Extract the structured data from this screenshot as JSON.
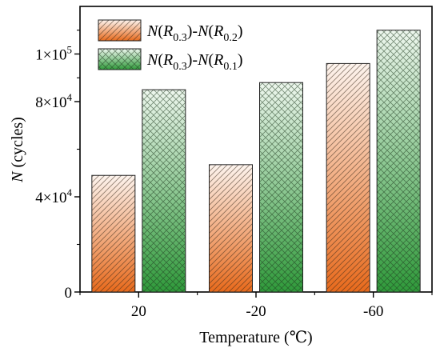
{
  "chart_data": {
    "type": "bar",
    "categories": [
      "20",
      "-20",
      "-60"
    ],
    "series": [
      {
        "name": "N(R0.3)-N(R0.2)",
        "values": [
          49000,
          53500,
          96000
        ],
        "pattern": "diagonal-hatch",
        "colors": {
          "top": "#fdf4ee",
          "bottom": "#e86a1c"
        }
      },
      {
        "name": "N(R0.3)-N(R0.1)",
        "values": [
          85000,
          88000,
          110000
        ],
        "pattern": "cross-hatch",
        "colors": {
          "top": "#eef7ee",
          "bottom": "#2f9a3a"
        }
      }
    ],
    "xlabel": "Temperature (℃)",
    "ylabel": "N (cycles)",
    "ylim": [
      0,
      120000
    ],
    "yticks": [
      {
        "value": 0,
        "mantissa": "0",
        "exp": ""
      },
      {
        "value": 40000,
        "mantissa": "4×10",
        "exp": "4"
      },
      {
        "value": 80000,
        "mantissa": "8×10",
        "exp": "4"
      },
      {
        "value": 100000,
        "mantissa": "1×10",
        "exp": "5"
      }
    ],
    "legend": {
      "position": "top-left",
      "entries": [
        {
          "N": "N",
          "R1": "R",
          "s1": "0.3",
          "N2": "N",
          "R2": "R",
          "s2": "0.2"
        },
        {
          "N": "N",
          "R1": "R",
          "s1": "0.3",
          "N2": "N",
          "R2": "R",
          "s2": "0.1"
        }
      ]
    },
    "grid": false
  }
}
